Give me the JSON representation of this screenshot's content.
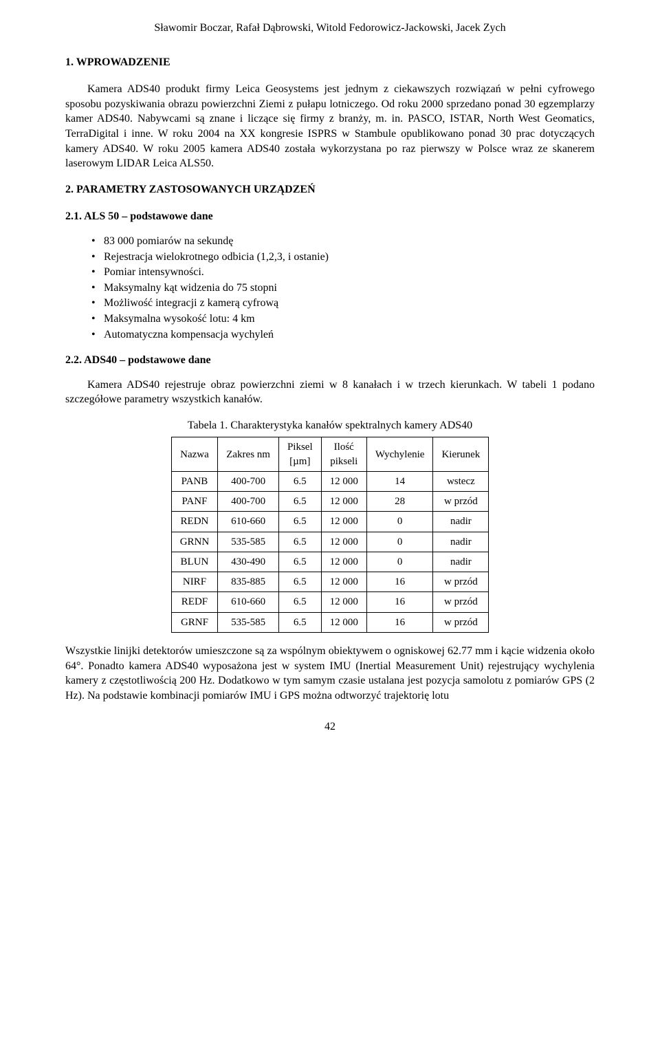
{
  "header": {
    "authors": "Sławomir Boczar, Rafał Dąbrowski, Witold Fedorowicz-Jackowski, Jacek Zych"
  },
  "s1": {
    "title": "1.  WPROWADZENIE",
    "para": "Kamera ADS40 produkt firmy Leica Geosystems jest jednym z ciekawszych rozwiązań w pełni cyfrowego sposobu pozyskiwania obrazu powierzchni Ziemi z pułapu lotniczego. Od roku 2000 sprzedano ponad 30 egzemplarzy kamer ADS40. Nabywcami są znane i liczące się firmy z branży, m. in. PASCO, ISTAR, North West Geomatics, TerraDigital i inne. W roku 2004 na XX kongresie ISPRS w Stambule opublikowano ponad 30 prac dotyczących kamery ADS40. W roku 2005 kamera ADS40 została wykorzystana po raz pierwszy w Polsce wraz ze skanerem laserowym LIDAR Leica ALS50."
  },
  "s2": {
    "title": "2.  PARAMETRY ZASTOSOWANYCH URZĄDZEŃ",
    "s21": {
      "title": "2.1.  ALS 50 – podstawowe dane",
      "items": [
        "83 000 pomiarów na sekundę",
        "Rejestracja wielokrotnego odbicia (1,2,3, i ostanie)",
        "Pomiar intensywności.",
        "Maksymalny kąt widzenia do 75 stopni",
        "Możliwość integracji z kamerą cyfrową",
        "Maksymalna wysokość lotu: 4 km",
        "Automatyczna kompensacja wychyleń"
      ]
    },
    "s22": {
      "title": "2.2. ADS40 – podstawowe dane",
      "para": "Kamera ADS40 rejestruje obraz powierzchni ziemi w 8 kanałach i w trzech kierunkach. W tabeli 1 podano szczegółowe parametry wszystkich kanałów.",
      "tableCaption": "Tabela 1. Charakterystyka kanałów spektralnych kamery ADS40",
      "table": {
        "headers": [
          "Nazwa",
          "Zakres nm",
          "Piksel\n[µm]",
          "Ilość\npikseli",
          "Wychylenie",
          "Kierunek"
        ],
        "rows": [
          [
            "PANB",
            "400-700",
            "6.5",
            "12 000",
            "14",
            "wstecz"
          ],
          [
            "PANF",
            "400-700",
            "6.5",
            "12 000",
            "28",
            "w przód"
          ],
          [
            "REDN",
            "610-660",
            "6.5",
            "12 000",
            "0",
            "nadir"
          ],
          [
            "GRNN",
            "535-585",
            "6.5",
            "12 000",
            "0",
            "nadir"
          ],
          [
            "BLUN",
            "430-490",
            "6.5",
            "12 000",
            "0",
            "nadir"
          ],
          [
            "NIRF",
            "835-885",
            "6.5",
            "12 000",
            "16",
            "w przód"
          ],
          [
            "REDF",
            "610-660",
            "6.5",
            "12 000",
            "16",
            "w przód"
          ],
          [
            "GRNF",
            "535-585",
            "6.5",
            "12 000",
            "16",
            "w przód"
          ]
        ]
      },
      "para2": "Wszystkie linijki detektorów umieszczone są za wspólnym obiektywem o ogniskowej 62.77 mm i kącie widzenia około 64°. Ponadto kamera ADS40 wyposażona jest w system IMU (Inertial Measurement Unit) rejestrujący wychylenia kamery z częstotliwością 200 Hz. Dodatkowo w tym samym czasie ustalana jest pozycja samolotu z pomiarów GPS (2 Hz). Na podstawie kombinacji pomiarów IMU i GPS można odtworzyć trajektorię lotu"
    }
  },
  "pageNumber": "42"
}
